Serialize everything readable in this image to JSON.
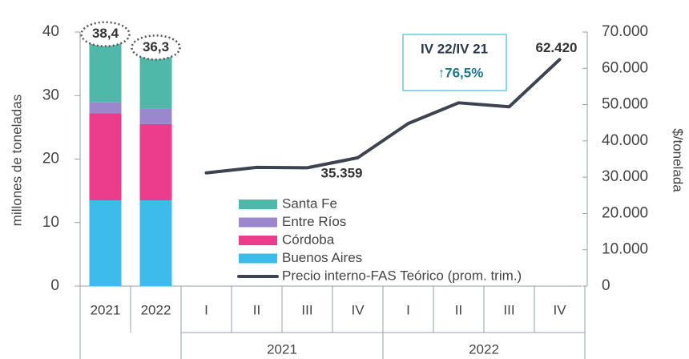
{
  "chart_data": {
    "type": "combo",
    "ylabel": "millones de toneladas",
    "y2label": "$/tonelada",
    "ylim": [
      0,
      40
    ],
    "yticks": [
      0,
      10,
      20,
      30,
      40
    ],
    "y2lim": [
      0,
      70000
    ],
    "y2ticks": [
      0,
      {
        "value": 10000,
        "label": "10.000"
      },
      {
        "value": 20000,
        "label": "20.000"
      },
      {
        "value": 30000,
        "label": "30.000"
      },
      {
        "value": 40000,
        "label": "40.000"
      },
      {
        "value": 50000,
        "label": "50.000"
      },
      {
        "value": 60000,
        "label": "60.000"
      },
      {
        "value": 70000,
        "label": "70.000"
      }
    ],
    "categories": [
      "2021",
      "2022"
    ],
    "series": [
      {
        "name": "Santa Fe",
        "color": "#4fb8a8",
        "values": [
          9.4,
          8.3
        ]
      },
      {
        "name": "Entre Ríos",
        "color": "#9b88cc",
        "values": [
          1.8,
          2.5
        ]
      },
      {
        "name": "Córdoba",
        "color": "#ec3d8c",
        "values": [
          13.7,
          12.0
        ]
      },
      {
        "name": "Buenos Aires",
        "color": "#3dbbea",
        "values": [
          13.5,
          13.5
        ]
      }
    ],
    "totals": [
      38.4,
      36.3
    ],
    "total_labels": [
      "38,4",
      "36,3"
    ],
    "line": {
      "name": "Precio interno-FAS Teórico (prom. trim.)",
      "color": "#3d4450",
      "axis": "y2",
      "categories": [
        "I",
        "II",
        "III",
        "IV",
        "I",
        "II",
        "III",
        "IV"
      ],
      "group_labels": [
        "2021",
        "2022"
      ],
      "values": [
        31200,
        32700,
        32600,
        35359,
        44800,
        50500,
        49400,
        62420
      ],
      "value_labels": [
        null,
        null,
        null,
        "35.359",
        null,
        null,
        null,
        "62.420"
      ]
    },
    "annotation": {
      "title": "IV 22/IV 21",
      "value": "↑76,5%"
    }
  }
}
